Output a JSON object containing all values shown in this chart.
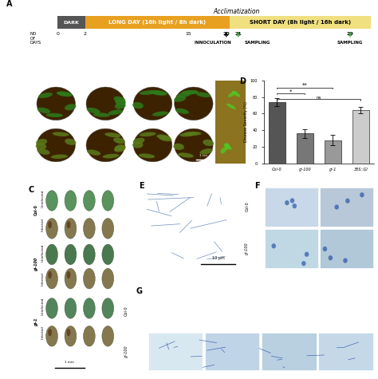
{
  "title_acclim": "Acclimatization",
  "timeline": {
    "dark_label": "DARK",
    "dark_color": "#555555",
    "long_day_label": "LONG DAY (16h light / 8h dark)",
    "long_day_color": "#E8A020",
    "short_day_label": "SHORT DAY (8h light / 16h dark)",
    "short_day_color": "#F0E080",
    "no_of_days_label": "NO\nOF\nDAYS"
  },
  "panel_D": {
    "categories": [
      "Col-0",
      "gi-100",
      "gi-1",
      "35S::GI"
    ],
    "values": [
      74,
      36,
      28,
      64
    ],
    "errors": [
      5,
      5,
      6,
      4
    ],
    "colors": [
      "#555555",
      "#777777",
      "#999999",
      "#CCCCCC"
    ],
    "ylabel": "Disease Severity (%)",
    "ylim": [
      0,
      100
    ],
    "yticks": [
      0,
      20,
      40,
      60,
      80,
      100
    ]
  },
  "panel_B_bg": "#0a0a0a",
  "panel_C_bg": "#f0f0ec",
  "panel_E_bg": "#ddd8ee",
  "panel_F_bg": "#d8e4f0",
  "panel_G_bg": "#d8eaf0",
  "background_color": "#ffffff",
  "fig_width": 4.74,
  "fig_height": 4.75
}
